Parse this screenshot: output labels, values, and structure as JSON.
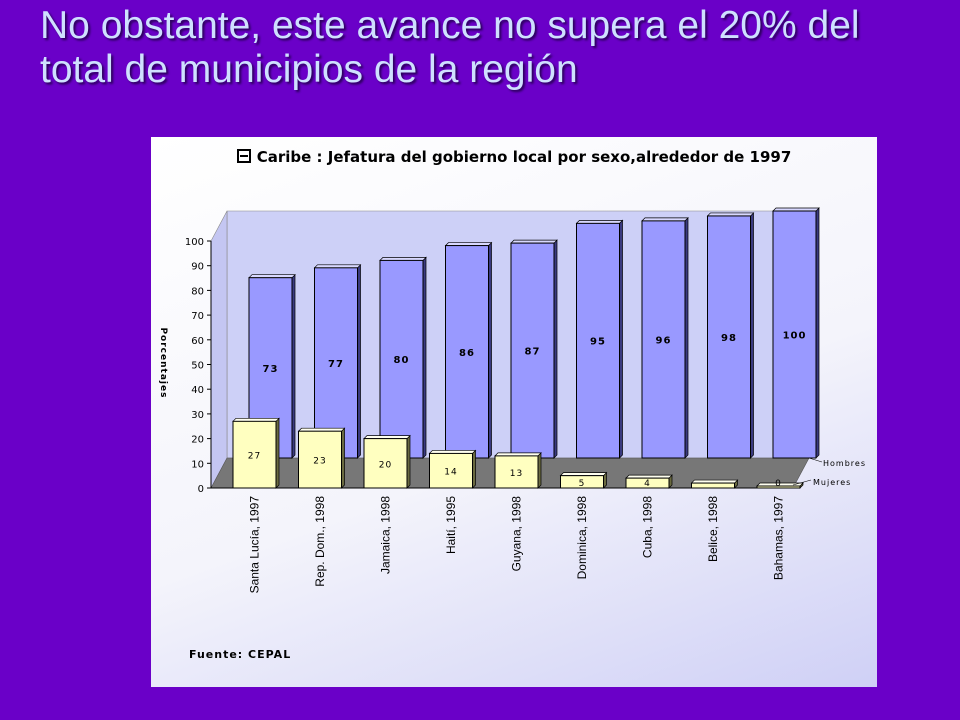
{
  "slide": {
    "title": "No obstante, este avance no supera el 20% del total de municipios de la región"
  },
  "chart_data": {
    "type": "bar",
    "title": "Caribe : Jefatura del gobierno local por sexo,alrededor de 1997",
    "ylabel": "Porcentajes",
    "xlabel": "",
    "ylim": [
      0,
      100
    ],
    "yticks": [
      0,
      10,
      20,
      30,
      40,
      50,
      60,
      70,
      80,
      90,
      100
    ],
    "categories": [
      "Santa Lucía, 1997",
      "Rep. Dom., 1998",
      "Jamaica, 1998",
      "Haití, 1995",
      "Guyana, 1998",
      "Dominica, 1998",
      "Cuba, 1998",
      "Belice, 1998",
      "Bahamas, 1997"
    ],
    "series": [
      {
        "name": "Hombres",
        "values": [
          73,
          77,
          80,
          86,
          87,
          95,
          96,
          98,
          100
        ],
        "color": "#9999ff"
      },
      {
        "name": "Mujeres",
        "values": [
          27,
          23,
          20,
          14,
          13,
          5,
          4,
          2,
          0
        ],
        "color": "#ffffc0"
      }
    ],
    "value_labels": {
      "Hombres": [
        "73",
        "77",
        "80",
        "86",
        "87",
        "95",
        "96",
        "98",
        "100"
      ],
      "Mujeres": [
        "27",
        "23",
        "20",
        "14",
        "13",
        "5",
        "4",
        "",
        "0"
      ]
    },
    "legend_position": "right",
    "grid": false,
    "source": "Fuente: CEPAL"
  }
}
